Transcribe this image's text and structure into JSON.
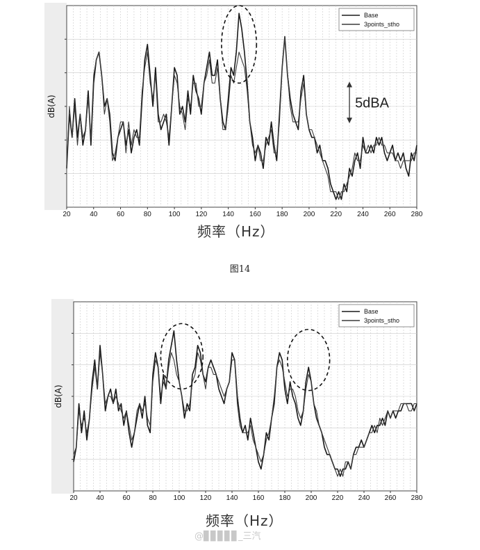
{
  "figure_caption": "图14",
  "watermark": "@▊▊▊▊▊_三汽",
  "chart_data": [
    {
      "type": "line",
      "title": "",
      "xlabel": "频率（Hz）",
      "ylabel": "dB(A)",
      "xlim": [
        20,
        280
      ],
      "xticks": [
        20,
        40,
        60,
        80,
        100,
        120,
        140,
        160,
        180,
        200,
        220,
        240,
        260,
        280
      ],
      "ylim": [
        0,
        26
      ],
      "grid": true,
      "legend_position": "top-right",
      "scale_annotation": {
        "label": "5dBA",
        "x": 230,
        "y_from": 11,
        "y_to": 16
      },
      "highlight_ellipse": {
        "x_center": 148,
        "y_center": 21,
        "x_radius": 13,
        "y_radius": 5
      },
      "series": [
        {
          "name": "Base",
          "x": [
            20,
            22,
            24,
            26,
            28,
            30,
            32,
            34,
            36,
            38,
            40,
            42,
            44,
            46,
            48,
            50,
            52,
            54,
            56,
            58,
            60,
            62,
            64,
            66,
            68,
            70,
            72,
            74,
            76,
            78,
            80,
            82,
            84,
            86,
            88,
            90,
            92,
            94,
            96,
            98,
            100,
            102,
            104,
            106,
            108,
            110,
            112,
            114,
            116,
            118,
            120,
            122,
            124,
            126,
            128,
            130,
            132,
            134,
            136,
            138,
            140,
            142,
            144,
            146,
            148,
            150,
            152,
            154,
            156,
            158,
            160,
            162,
            164,
            166,
            168,
            170,
            172,
            174,
            176,
            178,
            180,
            182,
            184,
            186,
            188,
            190,
            192,
            194,
            196,
            198,
            200,
            202,
            204,
            206,
            208,
            210,
            212,
            214,
            216,
            218,
            220,
            222,
            224,
            226,
            228,
            230,
            232,
            234,
            236,
            238,
            240,
            242,
            244,
            246,
            248,
            250,
            252,
            254,
            256,
            258,
            260,
            262,
            264,
            266,
            268,
            270,
            272,
            274,
            276,
            278,
            280
          ],
          "y": [
            5,
            12,
            9,
            14,
            9,
            12,
            8,
            10,
            15,
            8,
            16,
            19,
            20,
            17,
            13,
            14,
            12,
            7,
            6,
            9,
            10,
            11,
            8,
            10,
            7,
            9,
            10,
            8,
            14,
            19,
            21,
            17,
            13,
            18,
            12,
            10,
            11,
            12,
            8,
            13,
            18,
            17,
            12,
            13,
            11,
            15,
            12,
            17,
            15,
            14,
            12,
            16,
            18,
            20,
            17,
            17,
            19,
            14,
            11,
            10,
            14,
            18,
            17,
            20,
            25,
            23,
            20,
            16,
            11,
            9,
            6,
            8,
            7,
            5,
            9,
            8,
            11,
            8,
            6,
            12,
            18,
            22,
            17,
            14,
            12,
            11,
            10,
            15,
            17,
            12,
            10,
            9,
            9,
            7,
            8,
            6,
            6,
            5,
            3,
            2,
            1,
            2,
            1,
            3,
            2,
            5,
            4,
            6,
            7,
            5,
            9,
            7,
            7,
            8,
            7,
            9,
            8,
            9,
            7,
            6,
            7,
            8,
            6,
            7,
            6,
            7,
            5,
            4,
            7,
            6,
            8
          ]
        },
        {
          "name": "3points_stho",
          "x": [
            20,
            22,
            24,
            26,
            28,
            30,
            32,
            34,
            36,
            38,
            40,
            42,
            44,
            46,
            48,
            50,
            52,
            54,
            56,
            58,
            60,
            62,
            64,
            66,
            68,
            70,
            72,
            74,
            76,
            78,
            80,
            82,
            84,
            86,
            88,
            90,
            92,
            94,
            96,
            98,
            100,
            102,
            104,
            106,
            108,
            110,
            112,
            114,
            116,
            118,
            120,
            122,
            124,
            126,
            128,
            130,
            132,
            134,
            136,
            138,
            140,
            142,
            144,
            146,
            148,
            150,
            152,
            154,
            156,
            158,
            160,
            162,
            164,
            166,
            168,
            170,
            172,
            174,
            176,
            178,
            180,
            182,
            184,
            186,
            188,
            190,
            192,
            194,
            196,
            198,
            200,
            202,
            204,
            206,
            208,
            210,
            212,
            214,
            216,
            218,
            220,
            222,
            224,
            226,
            228,
            230,
            232,
            234,
            236,
            238,
            240,
            242,
            244,
            246,
            248,
            250,
            252,
            254,
            256,
            258,
            260,
            262,
            264,
            266,
            268,
            270,
            272,
            274,
            276,
            278,
            280
          ],
          "y": [
            5,
            13,
            9,
            13,
            8,
            12,
            9,
            10,
            14,
            9,
            17,
            19,
            20,
            17,
            12,
            14,
            11,
            6,
            7,
            9,
            11,
            11,
            7,
            11,
            8,
            10,
            9,
            9,
            15,
            18,
            20,
            16,
            14,
            17,
            11,
            11,
            12,
            11,
            9,
            13,
            17,
            16,
            13,
            12,
            10,
            14,
            13,
            16,
            16,
            13,
            13,
            16,
            17,
            19,
            16,
            16,
            18,
            14,
            10,
            10,
            13,
            17,
            16,
            18,
            20,
            19,
            18,
            15,
            11,
            8,
            7,
            8,
            6,
            6,
            8,
            9,
            10,
            7,
            7,
            11,
            18,
            22,
            17,
            13,
            11,
            11,
            11,
            14,
            16,
            12,
            10,
            10,
            9,
            8,
            7,
            6,
            5,
            4,
            2,
            2,
            2,
            1,
            2,
            2,
            3,
            4,
            5,
            7,
            6,
            6,
            8,
            7,
            8,
            7,
            8,
            8,
            9,
            8,
            8,
            7,
            7,
            7,
            6,
            6,
            5,
            6,
            6,
            6,
            6,
            7,
            7
          ]
        }
      ]
    },
    {
      "type": "line",
      "title": "",
      "xlabel": "频率（Hz）",
      "ylabel": "dB(A)",
      "xlim": [
        20,
        280
      ],
      "xticks": [
        20,
        40,
        60,
        80,
        100,
        120,
        140,
        160,
        180,
        200,
        220,
        240,
        260,
        280
      ],
      "ylim": [
        0,
        26
      ],
      "grid": true,
      "legend_position": "top-right",
      "highlight_ellipses": [
        {
          "x_center": 102,
          "y_center": 18.5,
          "x_radius": 16,
          "y_radius": 4.5
        },
        {
          "x_center": 198,
          "y_center": 18,
          "x_radius": 16,
          "y_radius": 4.2
        }
      ],
      "series": [
        {
          "name": "Base",
          "x": [
            20,
            22,
            24,
            26,
            28,
            30,
            32,
            34,
            36,
            38,
            40,
            42,
            44,
            46,
            48,
            50,
            52,
            54,
            56,
            58,
            60,
            62,
            64,
            66,
            68,
            70,
            72,
            74,
            76,
            78,
            80,
            82,
            84,
            86,
            88,
            90,
            92,
            94,
            96,
            98,
            100,
            102,
            104,
            106,
            108,
            110,
            112,
            114,
            116,
            118,
            120,
            122,
            124,
            126,
            128,
            130,
            132,
            134,
            136,
            138,
            140,
            142,
            144,
            146,
            148,
            150,
            152,
            154,
            156,
            158,
            160,
            162,
            164,
            166,
            168,
            170,
            172,
            174,
            176,
            178,
            180,
            182,
            184,
            186,
            188,
            190,
            192,
            194,
            196,
            198,
            200,
            202,
            204,
            206,
            208,
            210,
            212,
            214,
            216,
            218,
            220,
            222,
            224,
            226,
            228,
            230,
            232,
            234,
            236,
            238,
            240,
            242,
            244,
            246,
            248,
            250,
            252,
            254,
            256,
            258,
            260,
            262,
            264,
            266,
            268,
            270,
            272,
            274,
            276,
            278,
            280
          ],
          "y": [
            4,
            6,
            12,
            8,
            11,
            7,
            10,
            15,
            18,
            14,
            20,
            16,
            11,
            13,
            14,
            12,
            14,
            11,
            12,
            9,
            11,
            8,
            6,
            8,
            10,
            12,
            10,
            13,
            9,
            8,
            16,
            19,
            17,
            12,
            16,
            14,
            18,
            20,
            22,
            18,
            15,
            13,
            10,
            12,
            11,
            16,
            17,
            20,
            19,
            16,
            15,
            17,
            18,
            17,
            16,
            14,
            13,
            12,
            14,
            15,
            19,
            18,
            13,
            10,
            8,
            9,
            7,
            10,
            8,
            6,
            4,
            3,
            5,
            8,
            7,
            10,
            12,
            17,
            19,
            18,
            14,
            12,
            15,
            13,
            12,
            10,
            9,
            11,
            15,
            17,
            15,
            12,
            10,
            9,
            8,
            6,
            5,
            5,
            4,
            3,
            3,
            2,
            3,
            3,
            4,
            3,
            5,
            6,
            6,
            7,
            6,
            7,
            8,
            9,
            8,
            9,
            9,
            10,
            9,
            11,
            10,
            11,
            10,
            11,
            11,
            12,
            12,
            12,
            12,
            11,
            12
          ]
        },
        {
          "name": "3points_stho",
          "x": [
            20,
            22,
            24,
            26,
            28,
            30,
            32,
            34,
            36,
            38,
            40,
            42,
            44,
            46,
            48,
            50,
            52,
            54,
            56,
            58,
            60,
            62,
            64,
            66,
            68,
            70,
            72,
            74,
            76,
            78,
            80,
            82,
            84,
            86,
            88,
            90,
            92,
            94,
            96,
            98,
            100,
            102,
            104,
            106,
            108,
            110,
            112,
            114,
            116,
            118,
            120,
            122,
            124,
            126,
            128,
            130,
            132,
            134,
            136,
            138,
            140,
            142,
            144,
            146,
            148,
            150,
            152,
            154,
            156,
            158,
            160,
            162,
            164,
            166,
            168,
            170,
            172,
            174,
            176,
            178,
            180,
            182,
            184,
            186,
            188,
            190,
            192,
            194,
            196,
            198,
            200,
            202,
            204,
            206,
            208,
            210,
            212,
            214,
            216,
            218,
            220,
            222,
            224,
            226,
            228,
            230,
            232,
            234,
            236,
            238,
            240,
            242,
            244,
            246,
            248,
            250,
            252,
            254,
            256,
            258,
            260,
            262,
            264,
            266,
            268,
            270,
            272,
            274,
            276,
            278,
            280
          ],
          "y": [
            5,
            6,
            11,
            9,
            10,
            8,
            10,
            14,
            17,
            14,
            19,
            16,
            12,
            13,
            13,
            12,
            13,
            12,
            11,
            10,
            11,
            9,
            7,
            8,
            11,
            12,
            11,
            12,
            10,
            9,
            15,
            18,
            17,
            13,
            15,
            14,
            17,
            19,
            18,
            16,
            15,
            13,
            11,
            11,
            12,
            15,
            16,
            19,
            18,
            16,
            14,
            17,
            17,
            16,
            16,
            15,
            14,
            13,
            14,
            15,
            18,
            18,
            12,
            9,
            8,
            8,
            8,
            9,
            7,
            6,
            5,
            4,
            5,
            7,
            8,
            10,
            13,
            17,
            18,
            17,
            15,
            13,
            14,
            14,
            13,
            11,
            10,
            11,
            14,
            16,
            15,
            12,
            11,
            9,
            8,
            7,
            6,
            5,
            4,
            3,
            2,
            3,
            2,
            4,
            4,
            3,
            5,
            5,
            6,
            6,
            6,
            7,
            8,
            8,
            9,
            8,
            10,
            9,
            10,
            11,
            10,
            11,
            11,
            11,
            12,
            12,
            12,
            11,
            11,
            12,
            12
          ]
        }
      ]
    }
  ]
}
